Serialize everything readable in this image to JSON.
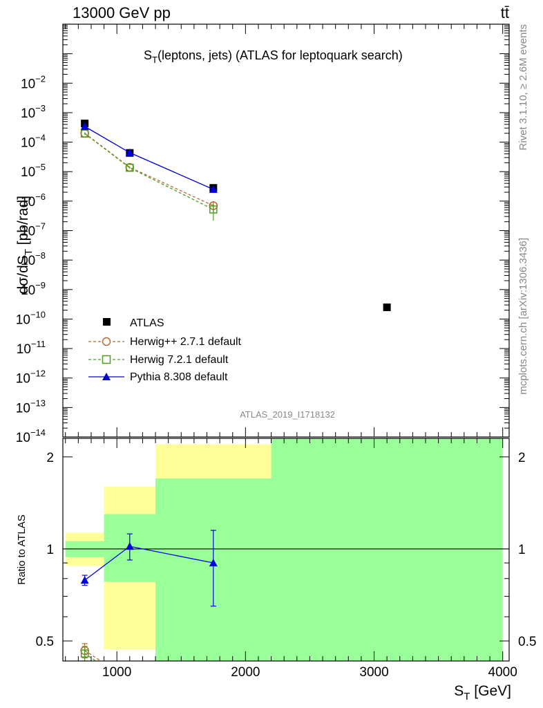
{
  "header": {
    "energy_label": "13000 GeV pp",
    "process_label": "tt̄"
  },
  "side_labels": {
    "rivet": "Rivet 3.1.10, ≥ 2.6M events",
    "mcplots": "mcplots.cern.ch [arXiv:1306.3436]"
  },
  "chart_data": [
    {
      "type": "scatter",
      "title_main": "S",
      "title_sub": "T",
      "title_rest": "(leptons, jets) (ATLAS for leptoquark search)",
      "analysis_id": "ATLAS_2019_I1718132",
      "ylabel": "dσ/dS",
      "ylabel_sub": "T",
      "ylabel_unit": " [pb/rad]",
      "yscale": "log",
      "ylim": [
        1e-14,
        1
      ],
      "xlim": [
        580,
        4050
      ],
      "y_ticks": [
        {
          "value": 1e-14,
          "label": "10",
          "exp": "−14"
        },
        {
          "value": 1e-13,
          "label": "10",
          "exp": "−13"
        },
        {
          "value": 1e-12,
          "label": "10",
          "exp": "−12"
        },
        {
          "value": 1e-11,
          "label": "10",
          "exp": "−11"
        },
        {
          "value": 1e-10,
          "label": "10",
          "exp": "−10"
        },
        {
          "value": 1e-09,
          "label": "10",
          "exp": "−9"
        },
        {
          "value": 1e-08,
          "label": "10",
          "exp": "−8"
        },
        {
          "value": 1e-07,
          "label": "10",
          "exp": "−7"
        },
        {
          "value": 1e-06,
          "label": "10",
          "exp": "−6"
        },
        {
          "value": 1e-05,
          "label": "10",
          "exp": "−5"
        },
        {
          "value": 0.0001,
          "label": "10",
          "exp": "−4"
        },
        {
          "value": 0.001,
          "label": "10",
          "exp": "−3"
        },
        {
          "value": 0.01,
          "label": "10",
          "exp": "−2"
        }
      ],
      "legend_position": "bottom-left",
      "series": [
        {
          "name": "ATLAS",
          "color": "#000000",
          "marker": "square",
          "line": "none",
          "points": [
            {
              "x": 750,
              "y": 0.00043
            },
            {
              "x": 1100,
              "y": 4.3e-05
            },
            {
              "x": 1750,
              "y": 2.8e-06
            },
            {
              "x": 3100,
              "y": 2.5e-10
            }
          ]
        },
        {
          "name": "Herwig++ 2.7.1 default",
          "color": "#b8652d",
          "marker": "circle-open",
          "line": "dashed",
          "points": [
            {
              "x": 750,
              "y": 0.0002,
              "err": 1.5e-05
            },
            {
              "x": 1100,
              "y": 1.4e-05,
              "err": 1e-06
            },
            {
              "x": 1750,
              "y": 7e-07,
              "err": 3e-07
            }
          ]
        },
        {
          "name": "Herwig 7.2.1 default",
          "color": "#4c9c1d",
          "marker": "square-open",
          "line": "dashed",
          "points": [
            {
              "x": 750,
              "y": 0.000195,
              "err": 1.5e-05
            },
            {
              "x": 1100,
              "y": 1.35e-05,
              "err": 1e-06
            },
            {
              "x": 1750,
              "y": 5.2e-07,
              "err": 3e-07
            }
          ]
        },
        {
          "name": "Pythia 8.308 default",
          "color": "#0000dd",
          "marker": "triangle",
          "line": "solid",
          "points": [
            {
              "x": 750,
              "y": 0.00034,
              "err": 2e-05
            },
            {
              "x": 1100,
              "y": 4.4e-05,
              "err": 3e-06
            },
            {
              "x": 1750,
              "y": 2.5e-06,
              "err": 6e-07
            }
          ]
        }
      ]
    },
    {
      "type": "scatter",
      "ylabel": "Ratio to ATLAS",
      "xlabel": "S",
      "xlabel_sub": "T",
      "xlabel_unit": " [GeV]",
      "yscale": "log",
      "ylim": [
        0.43,
        2.3
      ],
      "xlim": [
        580,
        4050
      ],
      "x_ticks": [
        1000,
        2000,
        3000,
        4000
      ],
      "y_ticks": [
        0.5,
        1,
        2
      ],
      "reference_line": 1,
      "bands": [
        {
          "x0": 600,
          "x1": 900,
          "yellow": [
            0.88,
            1.13
          ],
          "green": [
            0.94,
            1.06
          ]
        },
        {
          "x0": 900,
          "x1": 1300,
          "yellow": [
            0.47,
            1.6
          ],
          "green_lower": [
            0.78,
            0.47
          ],
          "green": [
            0.78,
            1.3
          ],
          "split": true
        },
        {
          "x0": 1300,
          "x1": 2200,
          "yellow": [
            0.43,
            2.2
          ],
          "green": [
            0.43,
            1.7
          ]
        },
        {
          "x0": 2200,
          "x1": 4000,
          "yellow": [
            0.43,
            2.3
          ],
          "green": [
            0.43,
            2.3
          ]
        }
      ],
      "series": [
        {
          "name": "Pythia 8.308 default",
          "color": "#0000dd",
          "marker": "triangle",
          "points": [
            {
              "x": 750,
              "y": 0.79,
              "err": 0.03
            },
            {
              "x": 1100,
              "y": 1.02,
              "err": 0.1
            },
            {
              "x": 1750,
              "y": 0.9,
              "err": 0.25
            }
          ]
        },
        {
          "name": "Herwig++ 2.7.1 default",
          "color": "#b8652d",
          "marker": "circle-open",
          "points": [
            {
              "x": 750,
              "y": 0.465,
              "err": 0.025
            },
            {
              "x": 950,
              "y": 0.41
            }
          ]
        },
        {
          "name": "Herwig 7.2.1 default",
          "color": "#4c9c1d",
          "marker": "square-open",
          "points": [
            {
              "x": 750,
              "y": 0.455,
              "err": 0.025
            },
            {
              "x": 950,
              "y": 0.4
            }
          ]
        }
      ]
    }
  ]
}
